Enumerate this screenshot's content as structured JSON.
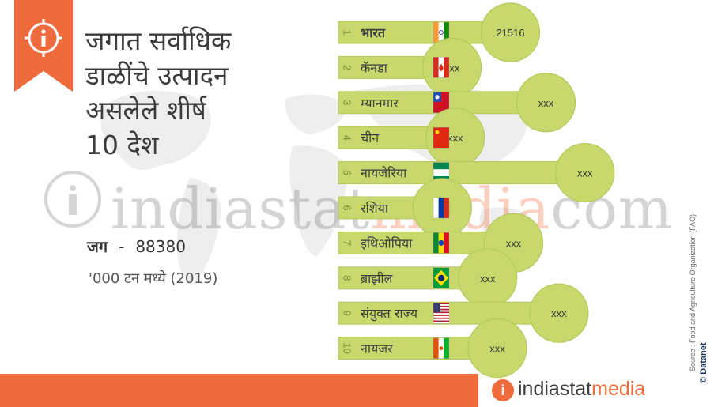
{
  "title_lines": [
    "जगात सर्वाधिक",
    "डाळींचे उत्पादन",
    "असलेले शीर्ष",
    "10 देश"
  ],
  "world": {
    "label": "जग",
    "separator": "-",
    "value": "88380"
  },
  "unit": "'000 टन मध्ये (2019)",
  "watermark": {
    "part1": "indiastat",
    "part2": "media",
    "part3": "com"
  },
  "source_note": "Source : Food and Agriculture Organization (FAO)",
  "brand_side": "© Datanet",
  "footer": {
    "logo_mark": "i",
    "brand1": "indiastat",
    "brand2": "media",
    "copyright": "©"
  },
  "colors": {
    "bar": "#c9d86d",
    "bar_stroke": "#b7c85a",
    "accent": "#ef6b3b",
    "text": "#3c3c3c"
  },
  "chart_data": {
    "type": "bar",
    "orientation": "horizontal",
    "categories": [
      "भारत",
      "कॅनडा",
      "म्यानमार",
      "चीन",
      "नायजेरिया",
      "रशिया",
      "इथिओपिया",
      "ब्राझील",
      "संयुक्त राज्य",
      "नायजर"
    ],
    "ranks": [
      "1",
      "2",
      "3",
      "4",
      "5",
      "6",
      "7",
      "8",
      "9",
      "10"
    ],
    "value_labels": [
      "21516",
      "xxx",
      "xxx",
      "xxx",
      "xxx",
      "xxx",
      "xxx",
      "xxx",
      "xxx",
      "xxx"
    ],
    "relative_lengths": [
      0.54,
      0.36,
      0.65,
      0.37,
      0.77,
      0.33,
      0.55,
      0.47,
      0.69,
      0.5
    ],
    "flags": [
      "india",
      "canada",
      "myanmar",
      "china",
      "nigeria",
      "russia",
      "ethiopia",
      "brazil",
      "usa",
      "niger"
    ]
  }
}
